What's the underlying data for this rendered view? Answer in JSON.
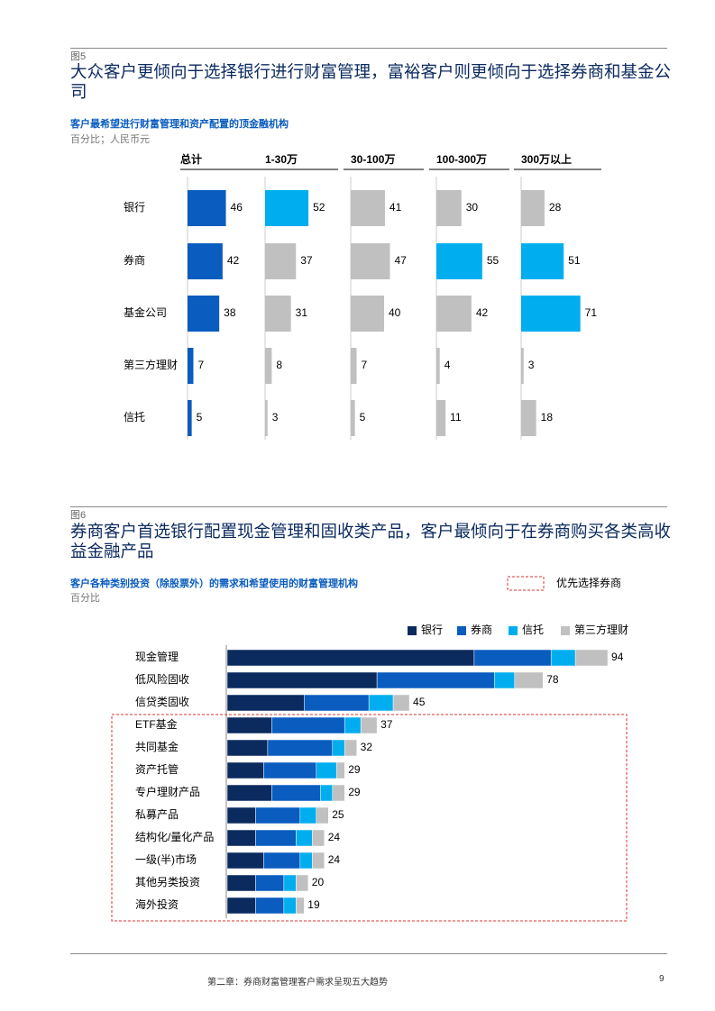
{
  "chart_data": [
    {
      "type": "bar",
      "figure_label": "图5",
      "title": "大众客户更倾向于选择银行进行财富管理，富裕客户则更倾向于选择券商和基金公司",
      "subtitle": "客户最希望进行财富管理和资产配置的顶金融机构",
      "unit_note": "百分比；人民币元",
      "categories": [
        "银行",
        "券商",
        "基金公司",
        "第三方理财",
        "信托"
      ],
      "xlim": [
        0,
        80
      ],
      "panels": [
        {
          "name": "总计",
          "values": [
            46,
            42,
            38,
            7,
            5
          ],
          "colors": [
            "#0a5cbf",
            "#0a5cbf",
            "#0a5cbf",
            "#0a5cbf",
            "#0a5cbf"
          ]
        },
        {
          "name": "1-30万",
          "values": [
            52,
            37,
            31,
            8,
            3
          ],
          "colors": [
            "#00aeef",
            "#c0c0c0",
            "#c0c0c0",
            "#c0c0c0",
            "#c0c0c0"
          ]
        },
        {
          "name": "30-100万",
          "values": [
            41,
            47,
            40,
            7,
            5
          ],
          "colors": [
            "#c0c0c0",
            "#c0c0c0",
            "#c0c0c0",
            "#c0c0c0",
            "#c0c0c0"
          ]
        },
        {
          "name": "100-300万",
          "values": [
            30,
            55,
            42,
            4,
            11
          ],
          "colors": [
            "#c0c0c0",
            "#00aeef",
            "#c0c0c0",
            "#c0c0c0",
            "#c0c0c0"
          ]
        },
        {
          "name": "300万以上",
          "values": [
            28,
            51,
            71,
            3,
            18
          ],
          "colors": [
            "#c0c0c0",
            "#00aeef",
            "#00aeef",
            "#c0c0c0",
            "#c0c0c0"
          ]
        }
      ]
    },
    {
      "type": "bar",
      "stacked": true,
      "figure_label": "图6",
      "title": "券商客户首选银行配置现金管理和固收类产品，客户最倾向于在券商购买各类高收益金融产品",
      "subtitle": "客户各种类别投资（除股票外）的需求和希望使用的财富管理机构",
      "unit_note": "百分比",
      "categories": [
        "现金管理",
        "低风险固收",
        "信贷类固收",
        "ETF基金",
        "共同基金",
        "资产托管",
        "专户理财产品",
        "私募产品",
        "结构化/量化产品",
        "一级(半)市场",
        "其他另类投资",
        "海外投资"
      ],
      "xlim": [
        0,
        100
      ],
      "series": [
        {
          "name": "银行",
          "color": "#0b2a5e",
          "values": [
            61,
            37,
            19,
            11,
            10,
            9,
            11,
            7,
            7,
            9,
            7,
            7
          ]
        },
        {
          "name": "券商",
          "color": "#0a5cbf",
          "values": [
            19,
            29,
            16,
            18,
            16,
            13,
            12,
            11,
            10,
            9,
            7,
            7
          ]
        },
        {
          "name": "信托",
          "color": "#00aeef",
          "values": [
            6,
            5,
            6,
            4,
            3,
            5,
            3,
            4,
            4,
            3,
            3,
            3
          ]
        },
        {
          "name": "第三方理财",
          "color": "#c0c0c0",
          "values": [
            8,
            7,
            4,
            4,
            3,
            2,
            3,
            3,
            3,
            3,
            3,
            2
          ]
        }
      ],
      "totals": [
        94,
        78,
        45,
        37,
        32,
        29,
        29,
        25,
        24,
        24,
        20,
        19
      ],
      "highlight": {
        "label": "优先选择券商",
        "categories": [
          "ETF基金",
          "共同基金",
          "资产托管",
          "专户理财产品",
          "私募产品",
          "结构化/量化产品",
          "一级(半)市场",
          "其他另类投资",
          "海外投资"
        ]
      }
    }
  ],
  "footer": {
    "chapter": "第二章：券商财富管理客户需求呈现五大趋势",
    "page": "9"
  }
}
